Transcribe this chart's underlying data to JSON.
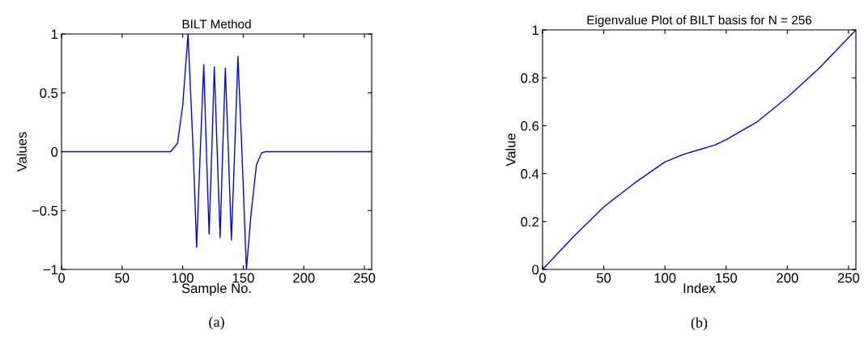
{
  "chart_data": [
    {
      "type": "line",
      "title": "BILT Method",
      "xlabel": "Sample No.",
      "ylabel": "Values",
      "annotations": [
        "(a)"
      ],
      "grid": false,
      "xlim": [
        0,
        256
      ],
      "xticks": [
        0,
        50,
        100,
        150,
        200,
        250
      ],
      "ylim": [
        -1,
        1
      ],
      "yticks": [
        {
          "value": -1,
          "label": "−1"
        },
        {
          "value": -0.5,
          "label": "−0.5"
        },
        0,
        0.5,
        1
      ],
      "series": [
        {
          "color": "#0000ff",
          "x": [
            0,
            90,
            95.7,
            100,
            104.4,
            108.7,
            111.5,
            114.5,
            117.4,
            119.6,
            121.8,
            124,
            126.1,
            128.5,
            130.9,
            133,
            135.2,
            137.7,
            140.2,
            142.9,
            145.6,
            148.9,
            152.6,
            156.5,
            160.9,
            165.2,
            168,
            256
          ],
          "values": [
            0,
            0,
            0.07,
            0.39,
            1,
            0,
            -0.81,
            0,
            0.74,
            0,
            -0.7,
            0,
            0.72,
            0,
            -0.73,
            0,
            0.71,
            0,
            -0.75,
            0,
            0.81,
            0,
            -1,
            -0.52,
            -0.11,
            -0.01,
            0,
            0
          ]
        }
      ]
    },
    {
      "type": "line",
      "title": "Eigenvalue Plot of BILT basis for N = 256",
      "xlabel": "Index",
      "ylabel": "Value",
      "annotations": [
        "(b)"
      ],
      "grid": false,
      "xlim": [
        0,
        256
      ],
      "xticks": [
        0,
        50,
        100,
        150,
        200,
        250
      ],
      "ylim": [
        0,
        1
      ],
      "yticks": [
        0,
        0.2,
        0.4,
        0.6,
        0.8,
        1
      ],
      "series": [
        {
          "color": "#0000ff",
          "x": [
            0,
            25,
            50,
            75,
            100,
            115,
            128,
            141,
            150,
            175,
            200,
            225,
            256
          ],
          "values": [
            0,
            0.135,
            0.261,
            0.36,
            0.449,
            0.48,
            0.5,
            0.52,
            0.542,
            0.615,
            0.719,
            0.835,
            1
          ]
        }
      ]
    }
  ]
}
